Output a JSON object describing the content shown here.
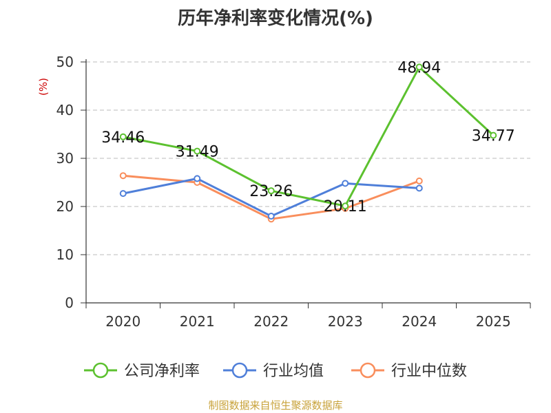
{
  "title": "历年净利率变化情况(%)",
  "source": "制图数据来自恒生聚源数据库",
  "chart_data": {
    "type": "line",
    "title": "历年净利率变化情况(%)",
    "ylabel": "(%)",
    "categories": [
      "2020",
      "2021",
      "2022",
      "2023",
      "2024",
      "2025"
    ],
    "ylim": [
      0,
      50
    ],
    "yticks": [
      0,
      10,
      20,
      30,
      40,
      50
    ],
    "grid": true,
    "legend_position": "bottom",
    "series": [
      {
        "name": "公司净利率",
        "color": "#5cc12f",
        "values": [
          34.46,
          31.49,
          23.26,
          20.11,
          48.94,
          34.77
        ],
        "labels": [
          "34.46",
          "31.49",
          "23.26",
          "20.11",
          "48.94",
          "34.77"
        ]
      },
      {
        "name": "行业均值",
        "color": "#4f7fd9",
        "values": [
          22.7,
          25.8,
          18.0,
          24.8,
          23.8,
          null
        ]
      },
      {
        "name": "行业中位数",
        "color": "#f98e5c",
        "values": [
          26.4,
          25.0,
          17.4,
          19.6,
          25.3,
          null
        ]
      }
    ]
  },
  "colors": {
    "ylabel": "#cc0000",
    "axis": "#333333",
    "grid": "#bbbbbb",
    "source": "#c8a23a"
  }
}
